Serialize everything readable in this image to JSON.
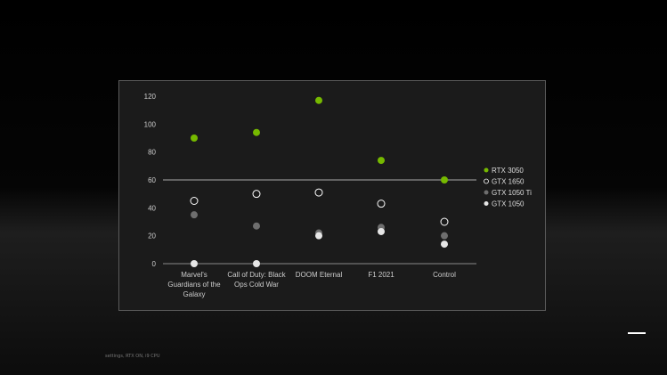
{
  "chart_data": {
    "type": "scatter",
    "categories": [
      "Marvel's Guardians of the Galaxy",
      "Call of Duty: Black Ops Cold War",
      "DOOM Eternal",
      "F1 2021",
      "Control"
    ],
    "category_lines": [
      [
        "Marvel's",
        "Guardians of the",
        "Galaxy"
      ],
      [
        "Call of Duty: Black",
        "Ops Cold War"
      ],
      [
        "DOOM Eternal"
      ],
      [
        "F1 2021"
      ],
      [
        "Control"
      ]
    ],
    "yticks": [
      0,
      20,
      40,
      60,
      80,
      100,
      120
    ],
    "ylim": [
      0,
      120
    ],
    "reference_line": 60,
    "grid": false,
    "legend_placement": "right",
    "series": [
      {
        "name": "RTX 3050",
        "values": [
          90,
          94,
          117,
          74,
          60
        ],
        "color": "#76b900",
        "style": "filled"
      },
      {
        "name": "GTX 1650",
        "values": [
          45,
          50,
          51,
          43,
          30
        ],
        "color": "#ffffff",
        "style": "hollow"
      },
      {
        "name": "GTX 1050 Ti",
        "values": [
          35,
          27,
          22,
          26,
          20
        ],
        "color": "#6e6e6e",
        "style": "filled"
      },
      {
        "name": "GTX 1050",
        "values": [
          0,
          0,
          20,
          23,
          14
        ],
        "color": "#e6e6e6",
        "style": "filled"
      }
    ]
  },
  "footnote": "settings, RTX ON, i9 CPU"
}
